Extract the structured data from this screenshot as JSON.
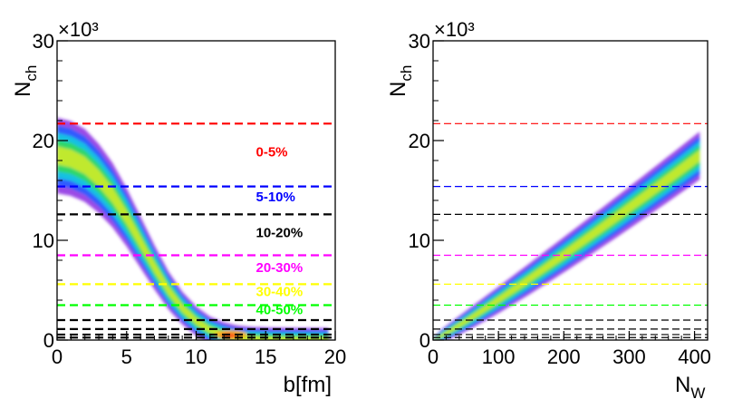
{
  "chart_data": [
    {
      "type": "heatmap",
      "title": "",
      "xlabel": "b[fm]",
      "ylabel_main": "N",
      "ylabel_sub": "ch",
      "y_exponent_label": "×10³",
      "xlim": [
        0,
        20
      ],
      "ylim": [
        0,
        30
      ],
      "x_major_ticks": [
        0,
        5,
        10,
        15,
        20
      ],
      "x_minor_step": 1,
      "x_tick_labels": [
        "0",
        "5",
        "10",
        "15",
        "20"
      ],
      "y_major_ticks": [
        0,
        10,
        20,
        30
      ],
      "y_minor_step": 2,
      "y_tick_labels": [
        "0",
        "10",
        "20",
        "30"
      ],
      "ridge": [
        {
          "x": 0.0,
          "y": 18.5
        },
        {
          "x": 1.0,
          "y": 18.2
        },
        {
          "x": 2.0,
          "y": 17.5
        },
        {
          "x": 3.0,
          "y": 16.2
        },
        {
          "x": 4.0,
          "y": 14.5
        },
        {
          "x": 5.0,
          "y": 12.3
        },
        {
          "x": 6.0,
          "y": 9.8
        },
        {
          "x": 7.0,
          "y": 7.3
        },
        {
          "x": 8.0,
          "y": 5.0
        },
        {
          "x": 9.0,
          "y": 3.2
        },
        {
          "x": 10.0,
          "y": 1.9
        },
        {
          "x": 11.0,
          "y": 1.0
        },
        {
          "x": 12.0,
          "y": 0.5
        },
        {
          "x": 13.0,
          "y": 0.22
        },
        {
          "x": 14.0,
          "y": 0.1
        },
        {
          "x": 15.5,
          "y": 0.04
        },
        {
          "x": 17.0,
          "y": 0.02
        },
        {
          "x": 19.5,
          "y": 0.0
        }
      ],
      "centrality_cuts": [
        {
          "y": 21.7,
          "color": "#ff0000"
        },
        {
          "y": 15.4,
          "color": "#0000ff"
        },
        {
          "y": 12.6,
          "color": "#000000"
        },
        {
          "y": 8.5,
          "color": "#ff00ff"
        },
        {
          "y": 5.6,
          "color": "#ffff00"
        },
        {
          "y": 3.5,
          "color": "#00ff00"
        },
        {
          "y": 2.0,
          "color": "#000000"
        },
        {
          "y": 1.1,
          "color": "#000000"
        },
        {
          "y": 0.55,
          "color": "#000000"
        },
        {
          "y": 0.25,
          "color": "#000000"
        }
      ],
      "band_labels": [
        {
          "text": "0-5%",
          "x": 14.3,
          "y": 18.4,
          "color": "#ff0000"
        },
        {
          "text": "5-10%",
          "x": 14.3,
          "y": 13.9,
          "color": "#0000ff"
        },
        {
          "text": "10-20%",
          "x": 14.3,
          "y": 10.3,
          "color": "#000000"
        },
        {
          "text": "20-30%",
          "x": 14.3,
          "y": 6.8,
          "color": "#ff00ff"
        },
        {
          "text": "30-40%",
          "x": 14.3,
          "y": 4.4,
          "color": "#ffff00"
        },
        {
          "text": "40-50%",
          "x": 14.3,
          "y": 2.6,
          "color": "#00ff00"
        }
      ]
    },
    {
      "type": "heatmap",
      "title": "",
      "xlabel_main": "N",
      "xlabel_sub": "W",
      "ylabel_main": "N",
      "ylabel_sub": "ch",
      "y_exponent_label": "×10³",
      "xlim": [
        0,
        420
      ],
      "ylim": [
        0,
        30
      ],
      "x_major_ticks": [
        0,
        100,
        200,
        300,
        400
      ],
      "x_minor_step": 20,
      "x_tick_labels": [
        "0",
        "100",
        "200",
        "300",
        "400"
      ],
      "y_major_ticks": [
        0,
        10,
        20,
        30
      ],
      "y_minor_step": 2,
      "y_tick_labels": [
        "0",
        "10",
        "20",
        "30"
      ],
      "band_start": [
        {
          "x": 2,
          "y": 0.05
        }
      ],
      "band_end": [
        {
          "x": 408,
          "y": 18.5
        }
      ],
      "centrality_cuts": [
        {
          "y": 21.7,
          "color": "#ff0000"
        },
        {
          "y": 15.4,
          "color": "#0000ff"
        },
        {
          "y": 12.6,
          "color": "#000000"
        },
        {
          "y": 8.5,
          "color": "#ff00ff"
        },
        {
          "y": 5.6,
          "color": "#ffff00"
        },
        {
          "y": 3.5,
          "color": "#00ff00"
        },
        {
          "y": 2.0,
          "color": "#000000"
        },
        {
          "y": 1.1,
          "color": "#000000"
        },
        {
          "y": 0.55,
          "color": "#000000"
        },
        {
          "y": 0.25,
          "color": "#000000"
        }
      ]
    }
  ]
}
